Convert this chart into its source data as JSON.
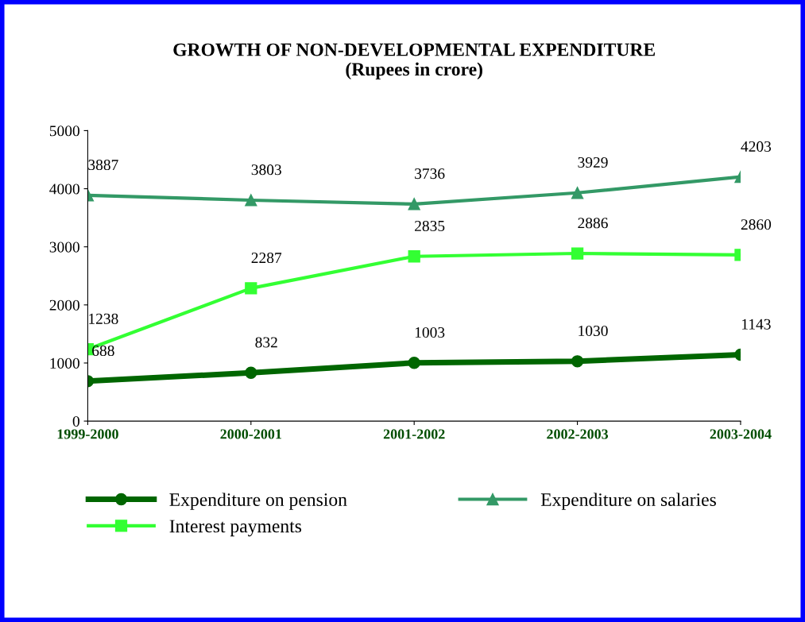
{
  "chart_data": {
    "type": "line",
    "title": "GROWTH OF NON-DEVELOPMENTAL EXPENDITURE\n(Rupees in crore)",
    "categories": [
      "1999-2000",
      "2000-2001",
      "2001-2002",
      "2002-2003",
      "2003-2004"
    ],
    "series": [
      {
        "name": "Expenditure on pension",
        "color": "#006600",
        "marker": "circle",
        "values": [
          688,
          832,
          1003,
          1030,
          1143
        ]
      },
      {
        "name": "Interest payments",
        "color": "#33ff33",
        "marker": "square",
        "values": [
          1238,
          2287,
          2835,
          2886,
          2860
        ]
      },
      {
        "name": "Expenditure on salaries",
        "color": "#339966",
        "marker": "triangle",
        "values": [
          3887,
          3803,
          3736,
          3929,
          4203
        ]
      }
    ],
    "ylim": [
      0,
      5000
    ],
    "yticks": [
      0,
      1000,
      2000,
      3000,
      4000,
      5000
    ],
    "grid": false,
    "legend": "bottom",
    "data_labels": true
  }
}
